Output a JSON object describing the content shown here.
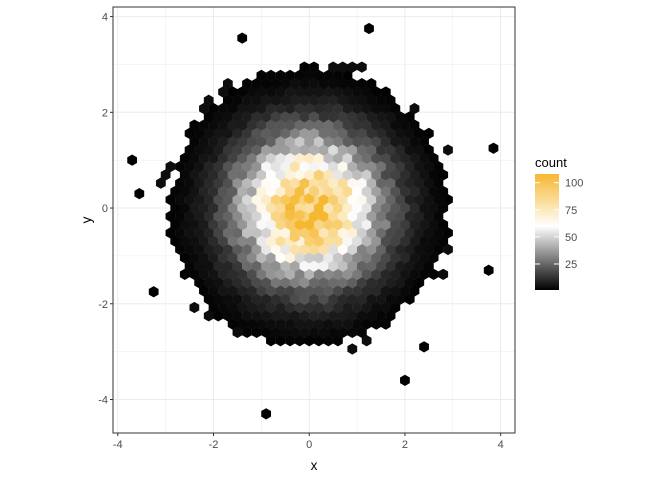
{
  "chart_data": {
    "type": "hexbin",
    "title": "",
    "xlabel": "x",
    "ylabel": "y",
    "xlim": [
      -4.1,
      4.3
    ],
    "ylim": [
      -4.7,
      4.2
    ],
    "x_ticks": [
      -4,
      -2,
      0,
      2,
      4
    ],
    "y_ticks": [
      -4,
      -2,
      0,
      2,
      4
    ],
    "grid": true,
    "legend": {
      "title": "count",
      "position": "right",
      "range": [
        1,
        108
      ],
      "ticks": [
        25,
        50,
        75,
        100
      ],
      "colors": {
        "low": "#000000",
        "mid": "#ffffff",
        "high": "#f5b830"
      }
    },
    "bin_width": 0.2,
    "hex_counts": {
      "description_of_density": "approximately bivariate normal, peak near (0,0)",
      "peak_cells": [
        {
          "x": 0.0,
          "y": 0.2,
          "count": 105
        },
        {
          "x": -0.4,
          "y": -0.15,
          "count": 104
        },
        {
          "x": -0.2,
          "y": -0.15,
          "count": 100
        },
        {
          "x": 0.1,
          "y": 0.35,
          "count": 92
        },
        {
          "x": -0.3,
          "y": -0.6,
          "count": 95
        }
      ],
      "outliers": [
        {
          "x": 1.25,
          "y": 3.75,
          "count": 1
        },
        {
          "x": -1.4,
          "y": 3.55,
          "count": 1
        },
        {
          "x": -3.7,
          "y": 1.0,
          "count": 1
        },
        {
          "x": 3.85,
          "y": 1.25,
          "count": 1
        },
        {
          "x": -0.9,
          "y": -4.3,
          "count": 1
        },
        {
          "x": 2.0,
          "y": -3.6,
          "count": 1
        },
        {
          "x": 2.4,
          "y": -2.9,
          "count": 1
        },
        {
          "x": -3.25,
          "y": -1.75,
          "count": 1
        },
        {
          "x": 3.75,
          "y": -1.3,
          "count": 1
        },
        {
          "x": -3.55,
          "y": 0.3,
          "count": 1
        }
      ]
    }
  }
}
